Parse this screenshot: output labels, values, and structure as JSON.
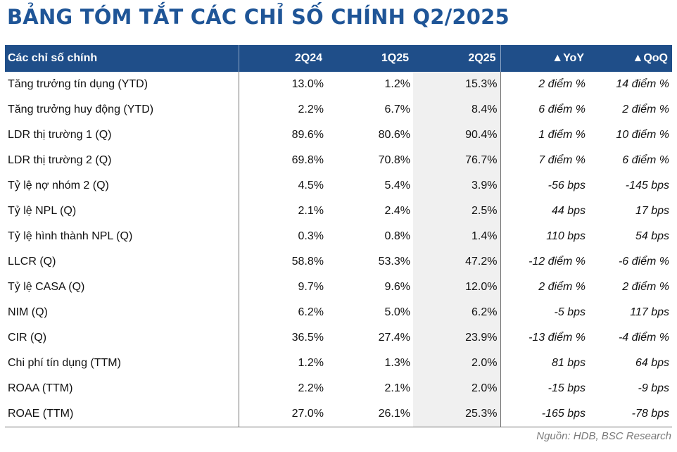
{
  "title": "BẢNG TÓM TẮT CÁC CHỈ SỐ CHÍNH Q2/2025",
  "table": {
    "headers": [
      "Các chỉ số chính",
      "2Q24",
      "1Q25",
      "2Q25",
      "▲YoY",
      "▲QoQ"
    ],
    "rows": [
      [
        "Tăng trưởng tín dụng (YTD)",
        "13.0%",
        "1.2%",
        "15.3%",
        "2 điểm %",
        "14 điểm %"
      ],
      [
        "Tăng trưởng huy động (YTD)",
        "2.2%",
        "6.7%",
        "8.4%",
        "6 điểm %",
        "2 điểm %"
      ],
      [
        "LDR thị trường 1 (Q)",
        "89.6%",
        "80.6%",
        "90.4%",
        "1 điểm %",
        "10 điểm %"
      ],
      [
        "LDR thị trường 2 (Q)",
        "69.8%",
        "70.8%",
        "76.7%",
        "7 điểm %",
        "6 điểm %"
      ],
      [
        "Tỷ lệ nợ nhóm 2 (Q)",
        "4.5%",
        "5.4%",
        "3.9%",
        "-56 bps",
        "-145 bps"
      ],
      [
        "Tỷ lệ NPL (Q)",
        "2.1%",
        "2.4%",
        "2.5%",
        "44 bps",
        "17 bps"
      ],
      [
        "Tỷ lệ hình thành NPL (Q)",
        "0.3%",
        "0.8%",
        "1.4%",
        "110 bps",
        "54 bps"
      ],
      [
        "LLCR (Q)",
        "58.8%",
        "53.3%",
        "47.2%",
        "-12 điểm %",
        "-6 điểm %"
      ],
      [
        "Tỷ lệ CASA (Q)",
        "9.7%",
        "9.6%",
        "12.0%",
        "2 điểm %",
        "2 điểm %"
      ],
      [
        "NIM (Q)",
        "6.2%",
        "5.0%",
        "6.2%",
        "-5 bps",
        "117 bps"
      ],
      [
        "CIR (Q)",
        "36.5%",
        "27.4%",
        "23.9%",
        "-13 điểm %",
        "-4 điểm %"
      ],
      [
        "Chi phí tín dụng (TTM)",
        "1.2%",
        "1.3%",
        "2.0%",
        "81 bps",
        "64 bps"
      ],
      [
        "ROAA (TTM)",
        "2.2%",
        "2.1%",
        "2.0%",
        "-15 bps",
        "-9 bps"
      ],
      [
        "ROAE (TTM)",
        "27.0%",
        "26.1%",
        "25.3%",
        "-165 bps",
        "-78 bps"
      ]
    ]
  },
  "source": "Nguồn: HDB, BSC Research"
}
